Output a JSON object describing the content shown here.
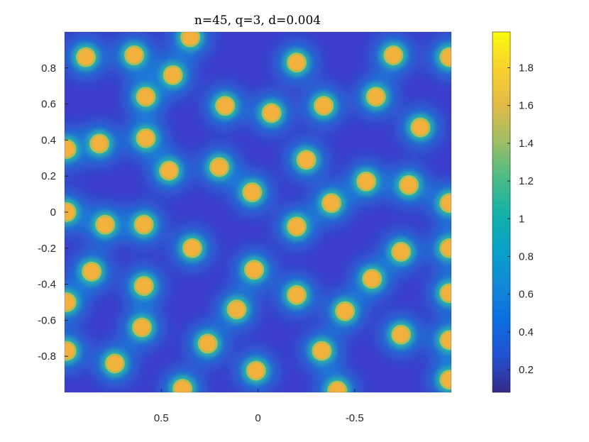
{
  "chart_data": {
    "type": "heatmap",
    "title": "n=45, q=3, d=0.004",
    "xlabel": "",
    "ylabel": "",
    "xlim": [
      1,
      -1
    ],
    "ylim": [
      -1,
      1
    ],
    "x_reversed": true,
    "x_ticks": [
      0.5,
      0,
      -0.5
    ],
    "x_tick_labels": [
      "0.5",
      "0",
      "-0.5"
    ],
    "y_ticks": [
      0.8,
      0.6,
      0.4,
      0.2,
      0,
      -0.2,
      -0.4,
      -0.6,
      -0.8
    ],
    "y_tick_labels": [
      "0.8",
      "0.6",
      "0.4",
      "0.2",
      "0",
      "-0.2",
      "-0.4",
      "-0.6",
      "-0.8"
    ],
    "colorbar": {
      "limits": [
        0.08,
        1.99
      ],
      "ticks": [
        1.8,
        1.6,
        1.4,
        1.2,
        1,
        0.8,
        0.6,
        0.4,
        0.2
      ],
      "tick_labels": [
        "1.8",
        "1.6",
        "1.4",
        "1.2",
        "1",
        "0.8",
        "0.6",
        "0.4",
        "0.2"
      ],
      "colormap": "parula"
    },
    "peak_value": 1.75,
    "background_value": 0.18,
    "points": [
      {
        "x": 0.89,
        "y": 0.86
      },
      {
        "x": 0.64,
        "y": 0.87
      },
      {
        "x": 0.35,
        "y": 0.97
      },
      {
        "x": 0.44,
        "y": 0.76
      },
      {
        "x": -0.2,
        "y": 0.83
      },
      {
        "x": -0.7,
        "y": 0.87
      },
      {
        "x": -0.99,
        "y": 0.86
      },
      {
        "x": 0.58,
        "y": 0.64
      },
      {
        "x": 0.17,
        "y": 0.59
      },
      {
        "x": -0.07,
        "y": 0.55
      },
      {
        "x": -0.34,
        "y": 0.59
      },
      {
        "x": -0.61,
        "y": 0.64
      },
      {
        "x": -0.84,
        "y": 0.47
      },
      {
        "x": 0.82,
        "y": 0.38
      },
      {
        "x": 0.58,
        "y": 0.41
      },
      {
        "x": 0.99,
        "y": 0.35
      },
      {
        "x": 0.46,
        "y": 0.23
      },
      {
        "x": 0.2,
        "y": 0.25
      },
      {
        "x": -0.25,
        "y": 0.29
      },
      {
        "x": 0.03,
        "y": 0.11
      },
      {
        "x": -0.56,
        "y": 0.17
      },
      {
        "x": -0.78,
        "y": 0.15
      },
      {
        "x": -0.38,
        "y": 0.05
      },
      {
        "x": -0.99,
        "y": 0.05
      },
      {
        "x": 0.99,
        "y": 0.0
      },
      {
        "x": 0.79,
        "y": -0.07
      },
      {
        "x": 0.59,
        "y": -0.07
      },
      {
        "x": -0.2,
        "y": -0.08
      },
      {
        "x": 0.34,
        "y": -0.2
      },
      {
        "x": -0.74,
        "y": -0.22
      },
      {
        "x": -0.99,
        "y": -0.2
      },
      {
        "x": 0.86,
        "y": -0.33
      },
      {
        "x": 0.02,
        "y": -0.32
      },
      {
        "x": -0.59,
        "y": -0.37
      },
      {
        "x": 0.59,
        "y": -0.41
      },
      {
        "x": -0.2,
        "y": -0.46
      },
      {
        "x": 0.11,
        "y": -0.54
      },
      {
        "x": -0.45,
        "y": -0.55
      },
      {
        "x": 0.99,
        "y": -0.5
      },
      {
        "x": 0.6,
        "y": -0.64
      },
      {
        "x": -0.74,
        "y": -0.68
      },
      {
        "x": 0.26,
        "y": -0.73
      },
      {
        "x": -0.33,
        "y": -0.77
      },
      {
        "x": 0.74,
        "y": -0.84
      },
      {
        "x": -0.99,
        "y": -0.71
      },
      {
        "x": 0.01,
        "y": -0.88
      },
      {
        "x": 0.39,
        "y": -0.98
      },
      {
        "x": -0.41,
        "y": -0.99
      },
      {
        "x": 0.99,
        "y": -0.77
      },
      {
        "x": -0.99,
        "y": -0.93
      },
      {
        "x": -0.99,
        "y": -0.45
      }
    ]
  }
}
